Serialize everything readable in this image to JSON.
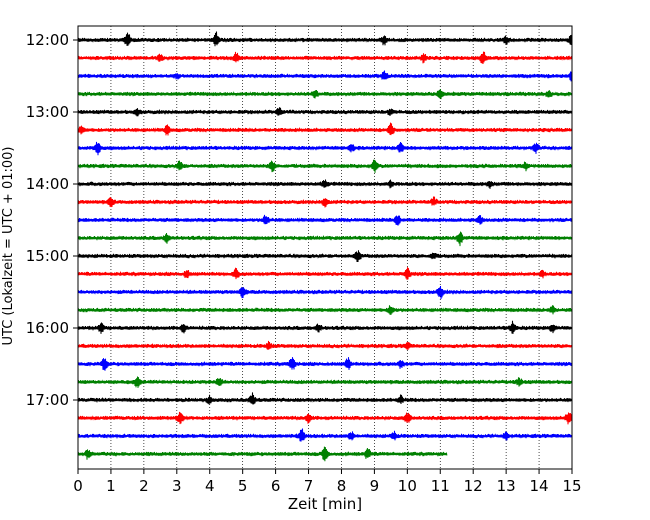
{
  "chart_data": {
    "type": "line",
    "title": "",
    "xlabel": "Zeit  [min]",
    "ylabel": "UTC (Lokalzeit = UTC + 01:00)",
    "xlim": [
      0,
      15
    ],
    "x_ticks": [
      "0",
      "1",
      "2",
      "3",
      "4",
      "5",
      "6",
      "7",
      "8",
      "9",
      "10",
      "11",
      "12",
      "13",
      "14",
      "15"
    ],
    "y_ticks": [
      "12:00",
      "13:00",
      "14:00",
      "15:00",
      "16:00",
      "17:00"
    ],
    "grid": "vertical dotted",
    "trace_interval_min": 15,
    "first_trace": "12:00",
    "trace_colors": [
      "#000000",
      "#ff0000",
      "#0000ff",
      "#008000"
    ],
    "series": [
      {
        "start": "12:00",
        "color": "#000000",
        "end_min": 15,
        "events": [
          [
            1.5,
            1.0
          ],
          [
            4.2,
            0.9
          ],
          [
            9.3,
            0.6
          ],
          [
            13.0,
            0.5
          ],
          [
            15.0,
            0.8
          ]
        ]
      },
      {
        "start": "12:15",
        "color": "#ff0000",
        "end_min": 15,
        "events": [
          [
            2.5,
            0.4
          ],
          [
            4.8,
            0.6
          ],
          [
            10.5,
            0.5
          ],
          [
            12.3,
            0.9
          ]
        ]
      },
      {
        "start": "12:30",
        "color": "#0000ff",
        "end_min": 15,
        "events": [
          [
            3.0,
            0.3
          ],
          [
            9.3,
            0.6
          ],
          [
            15.0,
            0.7
          ]
        ]
      },
      {
        "start": "12:45",
        "color": "#008000",
        "end_min": 15,
        "events": [
          [
            7.2,
            0.5
          ],
          [
            11.0,
            0.6
          ],
          [
            14.3,
            0.4
          ]
        ]
      },
      {
        "start": "13:00",
        "color": "#000000",
        "end_min": 15,
        "events": [
          [
            1.8,
            0.4
          ],
          [
            6.1,
            0.5
          ],
          [
            9.5,
            0.4
          ]
        ]
      },
      {
        "start": "13:15",
        "color": "#ff0000",
        "end_min": 15,
        "events": [
          [
            0.1,
            0.5
          ],
          [
            2.7,
            0.6
          ],
          [
            9.5,
            0.8
          ]
        ]
      },
      {
        "start": "13:30",
        "color": "#0000ff",
        "end_min": 15,
        "events": [
          [
            0.6,
            0.9
          ],
          [
            8.3,
            0.5
          ],
          [
            9.8,
            0.7
          ],
          [
            13.9,
            0.6
          ]
        ]
      },
      {
        "start": "13:45",
        "color": "#008000",
        "end_min": 15,
        "events": [
          [
            3.1,
            0.6
          ],
          [
            5.9,
            0.7
          ],
          [
            9.0,
            0.8
          ],
          [
            13.6,
            0.5
          ]
        ]
      },
      {
        "start": "14:00",
        "color": "#000000",
        "end_min": 15,
        "events": [
          [
            7.5,
            0.5
          ],
          [
            9.5,
            0.4
          ],
          [
            12.5,
            0.4
          ]
        ]
      },
      {
        "start": "14:15",
        "color": "#ff0000",
        "end_min": 15,
        "events": [
          [
            1.0,
            0.6
          ],
          [
            7.5,
            0.6
          ],
          [
            10.8,
            0.5
          ]
        ]
      },
      {
        "start": "14:30",
        "color": "#0000ff",
        "end_min": 15,
        "events": [
          [
            5.7,
            0.7
          ],
          [
            9.7,
            0.7
          ],
          [
            12.2,
            0.5
          ]
        ]
      },
      {
        "start": "14:45",
        "color": "#008000",
        "end_min": 15,
        "events": [
          [
            2.7,
            0.6
          ],
          [
            11.6,
            0.9
          ]
        ]
      },
      {
        "start": "15:00",
        "color": "#000000",
        "end_min": 15,
        "events": [
          [
            8.5,
            0.7
          ],
          [
            10.8,
            0.4
          ]
        ]
      },
      {
        "start": "15:15",
        "color": "#ff0000",
        "end_min": 15,
        "events": [
          [
            3.3,
            0.5
          ],
          [
            4.8,
            0.6
          ],
          [
            10.0,
            0.8
          ],
          [
            14.1,
            0.4
          ]
        ]
      },
      {
        "start": "15:30",
        "color": "#0000ff",
        "end_min": 15,
        "events": [
          [
            5.0,
            0.7
          ],
          [
            11.0,
            0.8
          ]
        ]
      },
      {
        "start": "15:45",
        "color": "#008000",
        "end_min": 15,
        "events": [
          [
            9.5,
            0.6
          ],
          [
            14.4,
            0.5
          ]
        ]
      },
      {
        "start": "16:00",
        "color": "#000000",
        "end_min": 15,
        "events": [
          [
            0.7,
            0.6
          ],
          [
            3.2,
            0.5
          ],
          [
            7.3,
            0.5
          ],
          [
            13.2,
            0.8
          ],
          [
            14.4,
            0.5
          ]
        ]
      },
      {
        "start": "16:15",
        "color": "#ff0000",
        "end_min": 15,
        "events": [
          [
            5.8,
            0.5
          ],
          [
            10.0,
            0.4
          ]
        ]
      },
      {
        "start": "16:30",
        "color": "#0000ff",
        "end_min": 15,
        "events": [
          [
            0.8,
            0.8
          ],
          [
            6.5,
            0.9
          ],
          [
            8.2,
            0.8
          ],
          [
            9.8,
            0.5
          ]
        ]
      },
      {
        "start": "16:45",
        "color": "#008000",
        "end_min": 15,
        "events": [
          [
            1.8,
            0.7
          ],
          [
            4.3,
            0.6
          ],
          [
            13.4,
            0.5
          ]
        ]
      },
      {
        "start": "17:00",
        "color": "#000000",
        "end_min": 15,
        "events": [
          [
            4.0,
            0.5
          ],
          [
            5.3,
            0.8
          ],
          [
            9.8,
            0.5
          ]
        ]
      },
      {
        "start": "17:15",
        "color": "#ff0000",
        "end_min": 15,
        "events": [
          [
            3.1,
            0.7
          ],
          [
            7.0,
            0.6
          ],
          [
            10.0,
            0.8
          ],
          [
            14.9,
            0.9
          ]
        ]
      },
      {
        "start": "17:30",
        "color": "#0000ff",
        "end_min": 15,
        "events": [
          [
            6.8,
            0.9
          ],
          [
            8.3,
            0.5
          ],
          [
            9.6,
            0.5
          ],
          [
            13.0,
            0.4
          ]
        ]
      },
      {
        "start": "17:45",
        "color": "#008000",
        "end_min": 11.2,
        "events": [
          [
            0.3,
            0.6
          ],
          [
            7.5,
            1.0
          ],
          [
            8.8,
            0.7
          ]
        ]
      }
    ]
  }
}
